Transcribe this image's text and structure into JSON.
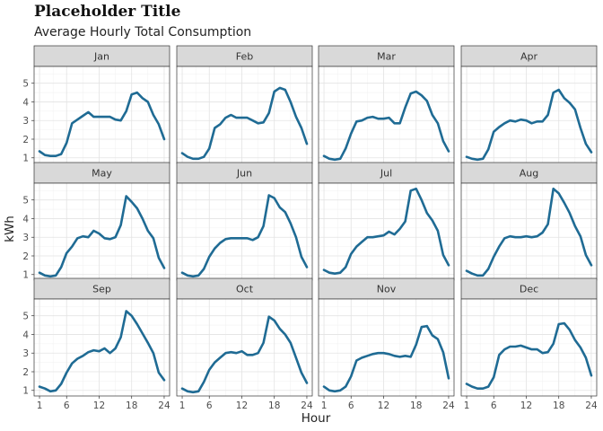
{
  "title": "Placeholder Title",
  "subtitle": "Average Hourly Total Consumption",
  "chart_data": {
    "type": "line",
    "xlabel": "Hour",
    "ylabel": "kWh",
    "x_ticks": [
      1,
      6,
      12,
      18,
      24
    ],
    "y_ticks": [
      1,
      2,
      3,
      4,
      5
    ],
    "xlim": [
      0,
      25
    ],
    "ylim": [
      0.7,
      5.9
    ],
    "grid": true,
    "line_color": "#1f6b94",
    "x": [
      1,
      2,
      3,
      4,
      5,
      6,
      7,
      8,
      9,
      10,
      11,
      12,
      13,
      14,
      15,
      16,
      17,
      18,
      19,
      20,
      21,
      22,
      23,
      24
    ],
    "panels": [
      {
        "name": "Jan",
        "values": [
          1.35,
          1.15,
          1.1,
          1.1,
          1.2,
          1.8,
          2.85,
          3.05,
          3.25,
          3.45,
          3.2,
          3.2,
          3.2,
          3.2,
          3.05,
          3.0,
          3.5,
          4.4,
          4.5,
          4.2,
          4.0,
          3.3,
          2.8,
          2.0
        ]
      },
      {
        "name": "Feb",
        "values": [
          1.25,
          1.05,
          0.95,
          0.95,
          1.05,
          1.5,
          2.6,
          2.8,
          3.15,
          3.3,
          3.15,
          3.15,
          3.15,
          3.0,
          2.85,
          2.9,
          3.4,
          4.55,
          4.75,
          4.65,
          4.0,
          3.2,
          2.6,
          1.75
        ]
      },
      {
        "name": "Mar",
        "values": [
          1.1,
          0.95,
          0.9,
          0.95,
          1.5,
          2.3,
          2.95,
          3.0,
          3.15,
          3.2,
          3.1,
          3.1,
          3.15,
          2.85,
          2.85,
          3.7,
          4.45,
          4.55,
          4.35,
          4.05,
          3.3,
          2.85,
          1.9,
          1.35
        ]
      },
      {
        "name": "Apr",
        "values": [
          1.05,
          0.95,
          0.9,
          0.95,
          1.45,
          2.4,
          2.65,
          2.85,
          3.0,
          2.95,
          3.05,
          3.0,
          2.85,
          2.95,
          2.95,
          3.3,
          4.5,
          4.65,
          4.2,
          3.95,
          3.6,
          2.6,
          1.75,
          1.3
        ]
      },
      {
        "name": "May",
        "values": [
          1.1,
          0.95,
          0.9,
          0.95,
          1.4,
          2.15,
          2.5,
          2.95,
          3.05,
          3.0,
          3.35,
          3.2,
          2.95,
          2.9,
          3.0,
          3.65,
          5.2,
          4.9,
          4.55,
          4.0,
          3.35,
          2.95,
          1.9,
          1.35
        ]
      },
      {
        "name": "Jun",
        "values": [
          1.1,
          0.95,
          0.9,
          0.95,
          1.3,
          1.95,
          2.4,
          2.7,
          2.9,
          2.95,
          2.95,
          2.95,
          2.95,
          2.85,
          3.0,
          3.6,
          5.25,
          5.1,
          4.6,
          4.35,
          3.75,
          3.0,
          1.95,
          1.4
        ]
      },
      {
        "name": "Jul",
        "values": [
          1.25,
          1.1,
          1.05,
          1.1,
          1.4,
          2.1,
          2.5,
          2.75,
          3.0,
          3.0,
          3.05,
          3.1,
          3.3,
          3.15,
          3.45,
          3.85,
          5.5,
          5.6,
          5.0,
          4.3,
          3.9,
          3.35,
          2.05,
          1.5
        ]
      },
      {
        "name": "Aug",
        "values": [
          1.2,
          1.05,
          0.95,
          0.95,
          1.3,
          1.95,
          2.5,
          2.95,
          3.05,
          3.0,
          3.0,
          3.05,
          3.0,
          3.05,
          3.25,
          3.7,
          5.6,
          5.35,
          4.85,
          4.3,
          3.6,
          3.05,
          2.05,
          1.5
        ]
      },
      {
        "name": "Sep",
        "values": [
          1.2,
          1.1,
          0.95,
          1.0,
          1.35,
          1.95,
          2.45,
          2.7,
          2.85,
          3.05,
          3.15,
          3.1,
          3.25,
          3.0,
          3.25,
          3.85,
          5.25,
          5.0,
          4.55,
          4.05,
          3.55,
          3.0,
          1.95,
          1.55
        ]
      },
      {
        "name": "Oct",
        "values": [
          1.1,
          0.95,
          0.9,
          0.95,
          1.45,
          2.1,
          2.5,
          2.75,
          3.0,
          3.05,
          3.0,
          3.1,
          2.9,
          2.9,
          3.0,
          3.55,
          4.95,
          4.75,
          4.3,
          4.0,
          3.55,
          2.75,
          1.95,
          1.4
        ]
      },
      {
        "name": "Nov",
        "values": [
          1.2,
          1.0,
          0.95,
          1.0,
          1.2,
          1.75,
          2.6,
          2.75,
          2.85,
          2.95,
          3.0,
          3.0,
          2.95,
          2.85,
          2.8,
          2.85,
          2.8,
          3.45,
          4.4,
          4.45,
          3.95,
          3.75,
          3.05,
          1.65
        ]
      },
      {
        "name": "Dec",
        "values": [
          1.35,
          1.2,
          1.1,
          1.1,
          1.2,
          1.7,
          2.9,
          3.2,
          3.35,
          3.35,
          3.4,
          3.3,
          3.2,
          3.2,
          3.0,
          3.05,
          3.5,
          4.55,
          4.6,
          4.25,
          3.7,
          3.3,
          2.75,
          1.8
        ]
      }
    ]
  }
}
